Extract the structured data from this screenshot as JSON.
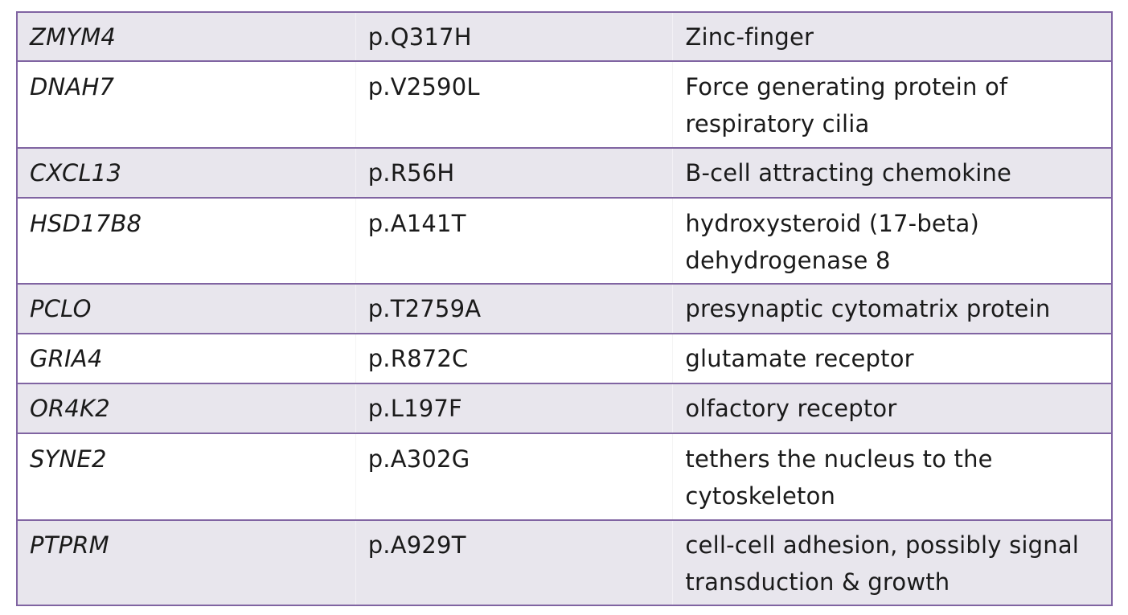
{
  "rows": [
    {
      "gene": "ZMYM4",
      "mutation": "p.Q317H",
      "description": "Zinc-finger"
    },
    {
      "gene": "DNAH7",
      "mutation": "p.V2590L",
      "description": "Force generating protein of respiratory cilia"
    },
    {
      "gene": "CXCL13",
      "mutation": "p.R56H",
      "description": "B-cell attracting chemokine"
    },
    {
      "gene": "HSD17B8",
      "mutation": "p.A141T",
      "description": "hydroxysteroid (17-beta) dehydrogenase 8"
    },
    {
      "gene": "PCLO",
      "mutation": "p.T2759A",
      "description": "presynaptic cytomatrix protein"
    },
    {
      "gene": "GRIA4",
      "mutation": "p.R872C",
      "description": "glutamate receptor"
    },
    {
      "gene": "OR4K2",
      "mutation": "p.L197F",
      "description": "olfactory receptor"
    },
    {
      "gene": "SYNE2",
      "mutation": "p.A302G",
      "description": "tethers the nucleus to the cytoskeleton"
    },
    {
      "gene": "PTPRM",
      "mutation": "p.A929T",
      "description": "cell-cell adhesion, possibly signal transduction & growth"
    }
  ],
  "colors": {
    "border": "#8064a2",
    "shaded_row": "#e8e6ed",
    "plain_row": "#ffffff"
  }
}
